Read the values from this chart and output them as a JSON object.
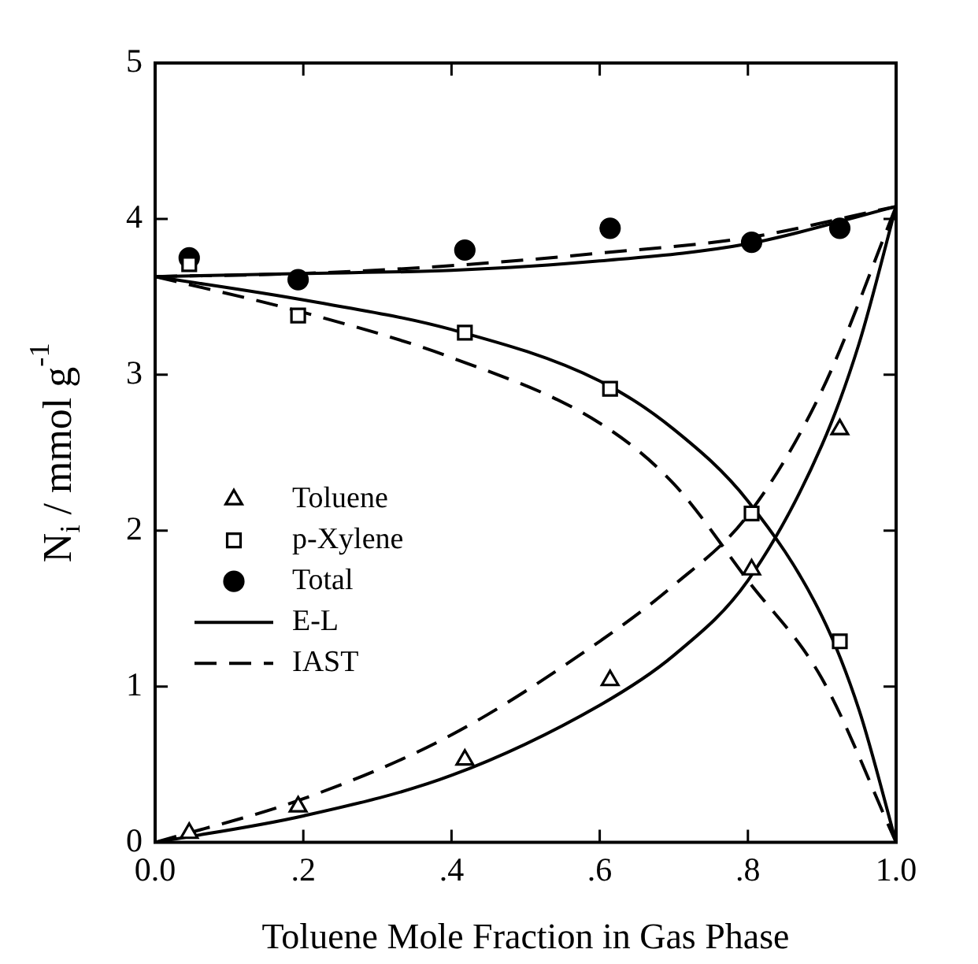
{
  "chart_data": {
    "type": "line",
    "xlabel": "Toluene Mole Fraction in Gas Phase",
    "ylabel": "N$_{i}$ / mmol g$^{-1}$",
    "xlim": [
      0,
      1
    ],
    "ylim": [
      0,
      5
    ],
    "xticks": [
      {
        "value": 0,
        "label": "0.0"
      },
      {
        "value": 0.2,
        "label": ".2"
      },
      {
        "value": 0.4,
        "label": ".4"
      },
      {
        "value": 0.6,
        "label": ".6"
      },
      {
        "value": 0.8,
        "label": ".8"
      },
      {
        "value": 1,
        "label": "1.0"
      }
    ],
    "yticks": [
      0,
      1,
      2,
      3,
      4,
      5
    ],
    "grid": false,
    "legend": "left",
    "series": [
      {
        "name": "Toluene",
        "type": "scatter",
        "marker": "triangle",
        "color": "#000000",
        "x": [
          0.046,
          0.193,
          0.418,
          0.614,
          0.805,
          0.924
        ],
        "values": [
          0.06,
          0.23,
          0.53,
          1.04,
          1.75,
          2.65
        ]
      },
      {
        "name": "p-Xylene",
        "type": "scatter",
        "marker": "square",
        "color": "#000000",
        "x": [
          0.046,
          0.193,
          0.418,
          0.614,
          0.805,
          0.924
        ],
        "values": [
          3.71,
          3.38,
          3.27,
          2.91,
          2.11,
          1.29
        ]
      },
      {
        "name": "Total",
        "type": "scatter",
        "marker": "circle",
        "color": "#000000",
        "x": [
          0.046,
          0.193,
          0.418,
          0.614,
          0.805,
          0.924
        ],
        "values": [
          3.75,
          3.61,
          3.8,
          3.94,
          3.85,
          3.94
        ]
      },
      {
        "name": "E-L",
        "marker": "none",
        "line_style": "solid",
        "color": "#000000",
        "x": [
          0,
          0.2,
          0.4,
          0.6,
          0.7,
          0.8,
          0.9,
          0.95,
          1
        ],
        "values": [
          0,
          0.17,
          0.43,
          0.88,
          1.2,
          1.68,
          2.55,
          3.2,
          4.08
        ]
      },
      {
        "marker": "none",
        "line_style": "solid",
        "color": "#000000",
        "x": [
          0,
          0.2,
          0.4,
          0.6,
          0.7,
          0.8,
          0.9,
          0.95,
          1
        ],
        "values": [
          3.63,
          3.48,
          3.29,
          2.96,
          2.65,
          2.19,
          1.45,
          0.85,
          0
        ]
      },
      {
        "marker": "none",
        "line_style": "solid",
        "color": "#000000",
        "x": [
          0,
          0.2,
          0.4,
          0.6,
          0.8,
          1
        ],
        "values": [
          3.63,
          3.65,
          3.67,
          3.73,
          3.84,
          4.08
        ]
      },
      {
        "name": "IAST",
        "marker": "none",
        "line_style": "dashed",
        "color": "#000000",
        "x": [
          0,
          0.2,
          0.4,
          0.6,
          0.7,
          0.8,
          0.9,
          1
        ],
        "values": [
          0,
          0.28,
          0.69,
          1.29,
          1.65,
          2.1,
          2.9,
          4.08
        ]
      },
      {
        "marker": "none",
        "line_style": "dashed",
        "color": "#000000",
        "x": [
          0,
          0.2,
          0.4,
          0.6,
          0.7,
          0.8,
          0.9,
          1
        ],
        "values": [
          3.63,
          3.4,
          3.11,
          2.69,
          2.3,
          1.68,
          1.05,
          0
        ]
      },
      {
        "marker": "none",
        "line_style": "dashed",
        "color": "#000000",
        "x": [
          0,
          0.2,
          0.4,
          0.6,
          0.8,
          1
        ],
        "values": [
          3.63,
          3.65,
          3.7,
          3.78,
          3.88,
          4.08
        ]
      }
    ]
  }
}
